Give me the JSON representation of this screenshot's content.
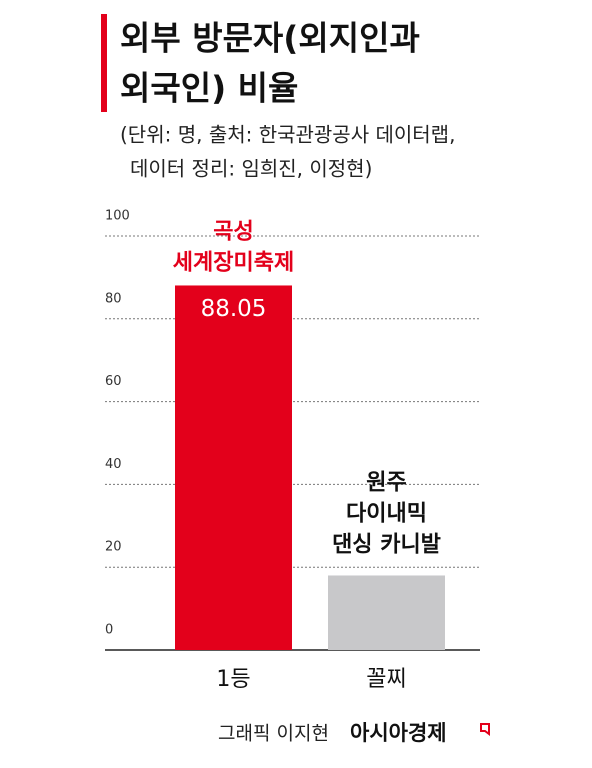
{
  "chart_data": {
    "type": "bar",
    "title": [
      "외부 방문자(외지인과",
      "외국인) 비율"
    ],
    "subtitle": [
      "(단위: 명, 출처: 한국관광공사 데이터랩,",
      "데이터 정리: 임희진, 이정현)"
    ],
    "categories": [
      "1등",
      "꼴찌"
    ],
    "values": [
      88.05,
      18
    ],
    "colors": [
      "#e3001b",
      "#c8c8ca"
    ],
    "annotations": [
      [
        "곡성",
        "세계장미축제"
      ],
      [
        "원주",
        "다이내믹",
        "댄싱 카니발"
      ]
    ],
    "ylim": [
      0,
      100
    ],
    "yticks": [
      0,
      20,
      40,
      60,
      80,
      100
    ],
    "grid": true,
    "credit": "그래픽 이지현",
    "source": "아시아경제"
  }
}
